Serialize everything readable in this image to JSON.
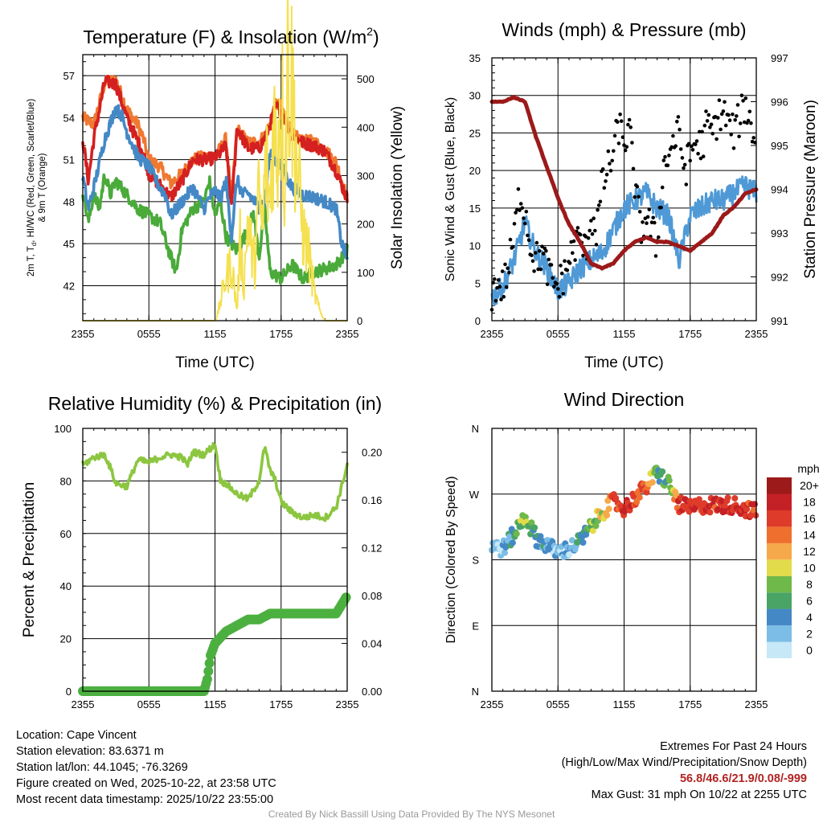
{
  "chart_data": [
    {
      "id": "temp",
      "type": "line",
      "title": "Temperature (F) & Insolation (W/m",
      "title_sup": "2",
      "title_end": ")",
      "ylabel_left_1": "2m T, T",
      "ylabel_left_1_sub": "d",
      "ylabel_left_1_end": ", HI/WC (Red, Green, Scarlet/Blue)",
      "ylabel_left_2": "& 9m T (Orange)",
      "ylabel_right": "Solar Insolation (Yellow)",
      "xlabel": "Time (UTC)",
      "ylim": [
        39.5,
        58.5
      ],
      "y_ticks": [
        42,
        45,
        48,
        51,
        54,
        57
      ],
      "y2lim": [
        0,
        550
      ],
      "y2_ticks": [
        0,
        100,
        200,
        300,
        400,
        500
      ],
      "x_ticks": [
        "2355",
        "0555",
        "1155",
        "1755",
        "2355"
      ],
      "series": [
        {
          "name": "9m T",
          "color": "#f07830",
          "x": [
            0,
            1,
            2,
            3,
            4,
            5,
            5.5,
            6,
            7,
            8,
            9,
            10,
            11,
            12,
            12.5,
            13,
            13.5,
            14,
            15,
            16,
            16.5,
            17,
            17.5,
            18,
            19,
            20,
            21,
            22,
            23,
            24
          ],
          "values": [
            54,
            53.5,
            56.5,
            56.7,
            54.6,
            53.5,
            52.5,
            51,
            50.5,
            49.3,
            50,
            51,
            51.2,
            51.3,
            51.8,
            52.5,
            48,
            53.2,
            52.2,
            52.3,
            52.7,
            53.5,
            55,
            54.8,
            52.8,
            52.3,
            52.3,
            51.7,
            50.8,
            48.2
          ]
        },
        {
          "name": "2m T",
          "color": "#d42020",
          "x": [
            0,
            0.5,
            1,
            2,
            3,
            4,
            5,
            5.5,
            6,
            7,
            8,
            9,
            10,
            11,
            12,
            12.5,
            13,
            13.5,
            14,
            15,
            16,
            16.5,
            17,
            17.5,
            18,
            19,
            20,
            21,
            22,
            23,
            24
          ],
          "values": [
            52.5,
            49.5,
            52.5,
            56.6,
            56.4,
            54,
            52.3,
            51.5,
            50,
            49.2,
            48.3,
            49.5,
            51,
            51,
            51.1,
            51.5,
            52,
            47.5,
            53.3,
            51.8,
            51.8,
            52.5,
            53.5,
            54.8,
            54.5,
            52.7,
            52.2,
            52,
            51.6,
            50.2,
            48.2
          ]
        },
        {
          "name": "2m Td",
          "color": "#4aaa3a",
          "x": [
            0,
            0.5,
            1,
            1.5,
            2,
            2.5,
            3,
            4,
            5,
            6,
            7,
            8,
            8.5,
            9,
            10,
            11,
            11.5,
            12,
            12.5,
            13,
            14,
            15,
            15.5,
            16,
            16.5,
            17,
            18,
            19,
            20,
            21,
            22,
            23,
            24
          ],
          "values": [
            48.8,
            46.5,
            48.5,
            47.5,
            50,
            48.5,
            49.5,
            48.5,
            47.5,
            47,
            46.5,
            44,
            43,
            46,
            47.5,
            48,
            49.5,
            47,
            48,
            45.5,
            44.5,
            46,
            47.2,
            44,
            47.6,
            43,
            42.5,
            43.5,
            42.5,
            43,
            43.2,
            43.5,
            44.5
          ]
        },
        {
          "name": "HI/WC",
          "color": "#4489c6",
          "x": [
            0,
            0.5,
            1,
            2,
            3,
            3.5,
            4,
            5,
            6,
            7,
            7.5,
            8,
            9,
            10,
            11,
            11.5,
            12,
            12.5,
            13,
            13.5,
            14,
            14.5,
            15,
            16,
            16.5,
            17,
            17.5,
            18,
            19,
            20,
            21,
            22,
            23,
            23.5,
            24
          ],
          "values": [
            49.8,
            47.5,
            49,
            52.5,
            54.7,
            54.2,
            53,
            51.2,
            50.5,
            49,
            48.5,
            47,
            48,
            49,
            47.5,
            48.3,
            48.8,
            48.2,
            49.5,
            45.5,
            49.6,
            48.5,
            48.6,
            47.6,
            48,
            51.5,
            51,
            50.5,
            49,
            48.5,
            48.3,
            48,
            47.5,
            45,
            44
          ]
        },
        {
          "name": "Solar Insolation",
          "color": "#f5e050",
          "axis": "right",
          "x": [
            0,
            12.1,
            12.5,
            13,
            13.5,
            14,
            14.3,
            14.6,
            15,
            15.3,
            15.6,
            16,
            16.3,
            16.6,
            17,
            17.3,
            17.6,
            18,
            18.3,
            18.6,
            19,
            19.5,
            20,
            20.5,
            21,
            21.5,
            22,
            24
          ],
          "values": [
            0,
            0,
            40,
            90,
            120,
            20,
            170,
            60,
            220,
            140,
            120,
            260,
            180,
            330,
            240,
            420,
            330,
            500,
            300,
            540,
            480,
            300,
            180,
            140,
            60,
            20,
            0,
            0
          ]
        }
      ]
    },
    {
      "id": "wind",
      "type": "line",
      "title": "Winds (mph) & Pressure (mb)",
      "ylabel_left": "Sonic Wind & Gust (Blue, Black)",
      "ylabel_right": "Station Pressure (Maroon)",
      "xlabel": "Time (UTC)",
      "ylim": [
        0,
        35
      ],
      "y_ticks": [
        0,
        5,
        10,
        15,
        20,
        25,
        30,
        35
      ],
      "y2lim": [
        991,
        997
      ],
      "y2_ticks": [
        991,
        992,
        993,
        994,
        995,
        996,
        997
      ],
      "x_ticks": [
        "2355",
        "0555",
        "1155",
        "1755",
        "2355"
      ],
      "series": [
        {
          "name": "Sonic Wind",
          "color": "#4f9ad6",
          "x": [
            0,
            1,
            2,
            3,
            4,
            5,
            6,
            7,
            8,
            9,
            10,
            11,
            12,
            13,
            14,
            15,
            16,
            17,
            18,
            19,
            20,
            21,
            22,
            23,
            24
          ],
          "values": [
            3,
            4.5,
            8,
            13,
            9,
            7,
            4,
            5,
            7,
            8,
            9,
            12,
            15,
            16,
            17,
            15,
            14,
            8,
            14,
            15,
            16,
            16,
            17,
            18,
            17
          ]
        },
        {
          "name": "Gust",
          "color": "#000000",
          "type": "scatter",
          "x": [
            0,
            0.5,
            1,
            1.5,
            2,
            2.5,
            3,
            3.5,
            4,
            4.5,
            5,
            5.5,
            6,
            6.5,
            7,
            7.5,
            8,
            8.5,
            9,
            9.5,
            10,
            10.5,
            11,
            11.5,
            12,
            12.5,
            13,
            13.5,
            14,
            14.5,
            15,
            15.5,
            16,
            16.5,
            17,
            17.5,
            18,
            18.5,
            19,
            19.5,
            20,
            20.5,
            21,
            21.5,
            22,
            22.5,
            23,
            23.5,
            24
          ],
          "values": [
            3.5,
            5,
            4.5,
            7,
            11,
            17,
            15,
            10,
            8,
            9,
            7,
            5,
            4.5,
            6,
            8,
            10,
            11,
            9,
            14,
            12,
            18,
            20,
            22,
            26,
            24,
            25,
            18,
            12,
            14,
            12,
            10,
            20,
            22,
            24,
            25,
            20,
            22,
            24,
            23,
            26,
            25,
            27,
            28,
            26,
            25,
            27,
            29,
            26,
            24
          ]
        },
        {
          "name": "Station Pressure",
          "color": "#9c1a1a",
          "axis": "right",
          "x": [
            0,
            1,
            2,
            3,
            4,
            5,
            6,
            7,
            8,
            9,
            10,
            11,
            12,
            13,
            14,
            15,
            16,
            17,
            18,
            19,
            20,
            21,
            22,
            23,
            24
          ],
          "values": [
            996,
            996,
            996.1,
            996,
            995.2,
            994.5,
            993.8,
            993.2,
            992.8,
            992.3,
            992.2,
            992.3,
            992.6,
            992.8,
            992.9,
            992.8,
            992.8,
            992.7,
            992.6,
            992.8,
            993,
            993.4,
            993.6,
            993.9,
            994
          ]
        }
      ]
    },
    {
      "id": "rh",
      "type": "line",
      "title": "Relative Humidity (%) & Precipitation (in)",
      "ylabel_left": "Percent & Precipitation",
      "ylim": [
        0,
        100
      ],
      "y_ticks": [
        0,
        20,
        40,
        60,
        80,
        100
      ],
      "y2lim": [
        0,
        0.22
      ],
      "y2_ticks": [
        "0.00",
        "0.04",
        "0.08",
        "0.12",
        "0.16",
        "0.20"
      ],
      "x_ticks": [
        "2355",
        "0555",
        "1155",
        "1755",
        "2355"
      ],
      "series": [
        {
          "name": "Relative Humidity",
          "color": "#8cc640",
          "x": [
            0,
            1,
            2,
            2.5,
            3,
            4,
            5,
            6,
            7,
            8,
            9,
            9.5,
            10,
            11,
            12,
            12.5,
            13,
            14,
            15,
            16,
            16.5,
            17,
            17.5,
            18,
            19,
            20,
            21,
            22,
            23,
            24
          ],
          "values": [
            86,
            89,
            90,
            85,
            79,
            78,
            88,
            87,
            89,
            90,
            89,
            86,
            91,
            90,
            94,
            80,
            79,
            75,
            73,
            80,
            93,
            84,
            80,
            72,
            68,
            66,
            67,
            66,
            70,
            86
          ]
        },
        {
          "name": "Precipitation",
          "color": "#4cb040",
          "type": "step",
          "x": [
            0,
            11,
            11.3,
            11.6,
            12,
            13,
            14,
            15,
            16,
            17,
            17.5,
            18,
            19,
            20,
            21,
            22,
            23,
            24
          ],
          "values": [
            0,
            0,
            0.01,
            0.03,
            0.04,
            0.05,
            0.055,
            0.06,
            0.06,
            0.065,
            0.065,
            0.065,
            0.065,
            0.065,
            0.065,
            0.065,
            0.065,
            0.08
          ]
        }
      ]
    },
    {
      "id": "dir",
      "type": "scatter",
      "title": "Wind Direction",
      "ylabel_left": "Direction (Colored By Speed)",
      "y_ticks": [
        "N",
        "E",
        "S",
        "W",
        "N"
      ],
      "x_ticks": [
        "2355",
        "0555",
        "1155",
        "1755",
        "2355"
      ],
      "colorbar_title": "mph",
      "colorbar_labels": [
        "0",
        "2",
        "4",
        "6",
        "8",
        "10",
        "12",
        "14",
        "16",
        "18",
        "20+"
      ],
      "colorbar_colors": [
        "#c6e8f7",
        "#7bbde6",
        "#4488c6",
        "#49a466",
        "#6fb84a",
        "#e3dc4a",
        "#f6a94a",
        "#ef6f2e",
        "#de3b2a",
        "#c42126",
        "#9c1a1a"
      ]
    }
  ],
  "info_left": [
    "Location: Cape Vincent",
    "Station elevation: 83.6371 m",
    "Station lat/lon: 44.1045; -76.3269",
    "Figure created on Wed, 2025-10-22, at 23:58 UTC",
    "Most recent data timestamp: 2025/10/22 23:55:00"
  ],
  "info_right": {
    "line1": "Extremes For Past 24 Hours",
    "line2": "(High/Low/Max Wind/Precipitation/Snow Depth)",
    "extremes": "56.8/46.6/21.9/0.08/-999",
    "gust": "Max Gust: 31 mph On 10/22 at 2255 UTC"
  },
  "credit": "Created By Nick Bassill Using Data Provided By The NYS Mesonet"
}
